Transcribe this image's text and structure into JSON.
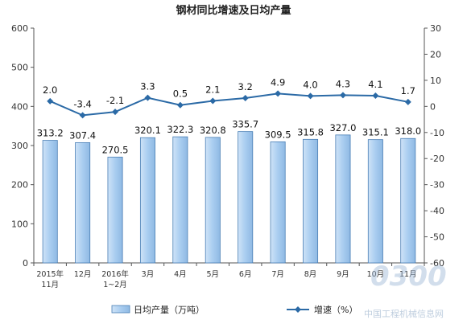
{
  "chart_data": {
    "type": "bar+line",
    "title": "钢材同比增速及日均产量",
    "categories": [
      [
        "2015年",
        "11月"
      ],
      [
        "12月"
      ],
      [
        "2016年",
        "1~2月"
      ],
      [
        "3月"
      ],
      [
        "4月"
      ],
      [
        "5月"
      ],
      [
        "6月"
      ],
      [
        "7月"
      ],
      [
        "8月"
      ],
      [
        "9月"
      ],
      [
        "10月"
      ],
      [
        "11月"
      ]
    ],
    "series": [
      {
        "name": "日均产量（万吨）",
        "type": "bar",
        "axis": "left",
        "values": [
          313.2,
          307.4,
          270.5,
          320.1,
          322.3,
          320.8,
          335.7,
          309.5,
          315.8,
          327.0,
          315.1,
          318.0
        ],
        "labels": [
          "313.2",
          "307.4",
          "270.5",
          "320.1",
          "322.3",
          "320.8",
          "335.7",
          "309.5",
          "315.8",
          "327.0",
          "315.1",
          "318.0"
        ]
      },
      {
        "name": "增速（%）",
        "type": "line",
        "axis": "right",
        "values": [
          2.0,
          -3.4,
          -2.1,
          3.3,
          0.5,
          2.1,
          3.2,
          4.9,
          4.0,
          4.3,
          4.1,
          1.7
        ],
        "labels": [
          "2.0",
          "-3.4",
          "-2.1",
          "3.3",
          "0.5",
          "2.1",
          "3.2",
          "4.9",
          "4.0",
          "4.3",
          "4.1",
          "1.7"
        ]
      }
    ],
    "y_left": {
      "range": [
        0,
        600
      ],
      "ticks": [
        "0",
        "100",
        "200",
        "300",
        "400",
        "500",
        "600"
      ]
    },
    "y_right": {
      "range": [
        -60,
        30
      ],
      "ticks": [
        "-60",
        "-50",
        "-40",
        "-30",
        "-20",
        "-10",
        "0",
        "10",
        "20",
        "30"
      ]
    },
    "grid": false,
    "legend_placement": "bottom",
    "colors": {
      "bar_fill": "#a9cdf0",
      "bar_edge": "#4a7fb5",
      "line": "#2b6aa6"
    }
  },
  "watermark": {
    "number": "0300",
    "site": "中国工程机械信息网"
  }
}
